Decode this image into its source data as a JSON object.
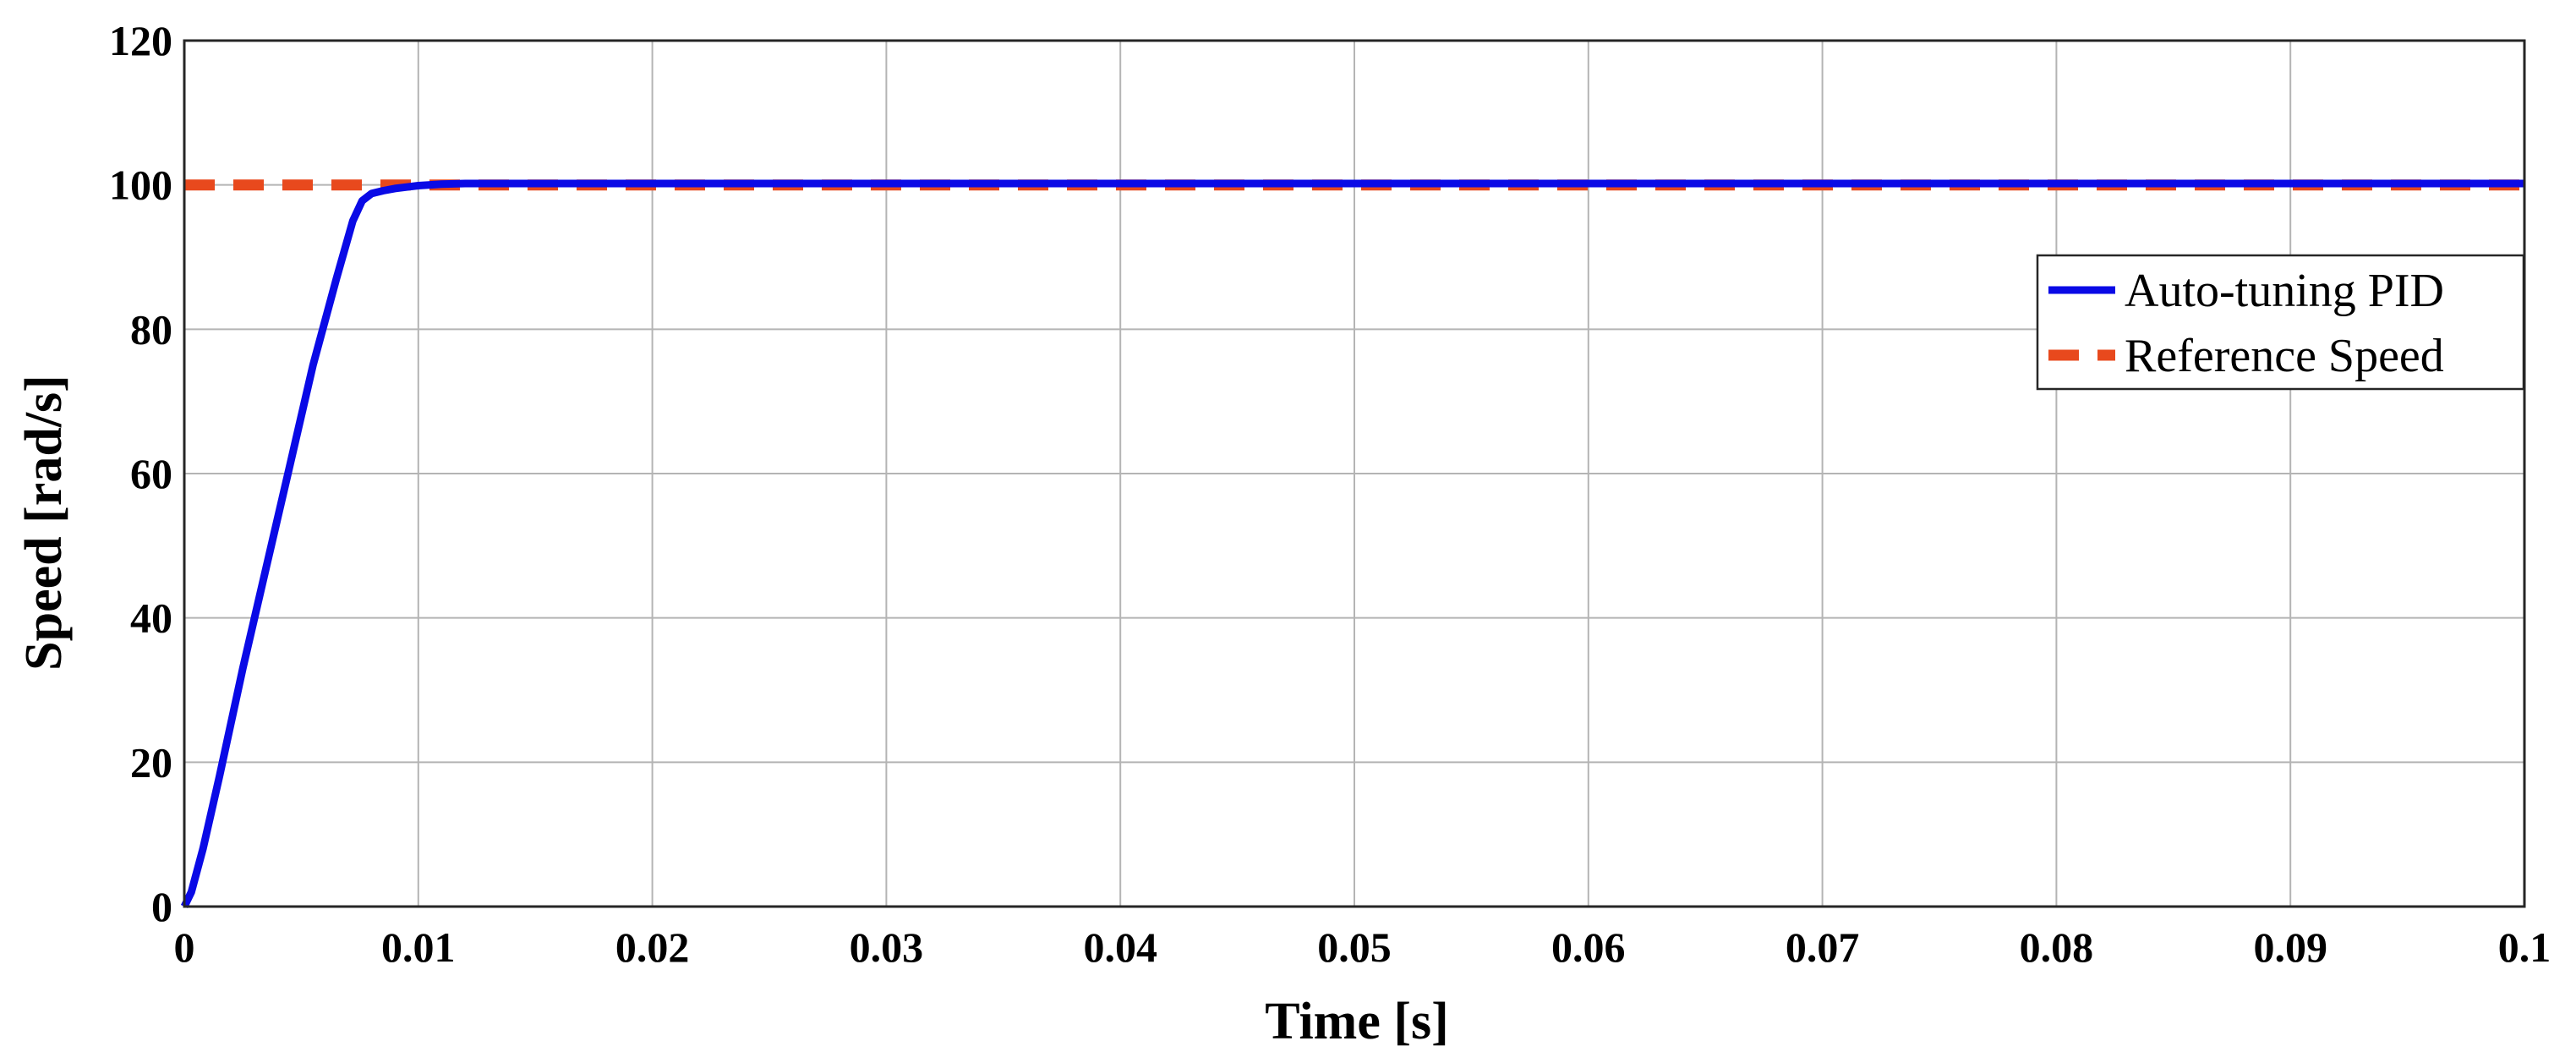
{
  "chart_data": {
    "type": "line",
    "title": "",
    "xlabel": "Time [s]",
    "ylabel": "Speed [rad/s]",
    "xlim": [
      0,
      0.1
    ],
    "ylim": [
      0,
      120
    ],
    "xticks": [
      0,
      0.01,
      0.02,
      0.03,
      0.04,
      0.05,
      0.06,
      0.07,
      0.08,
      0.09,
      0.1
    ],
    "xtick_labels": [
      "0",
      "0.01",
      "0.02",
      "0.03",
      "0.04",
      "0.05",
      "0.06",
      "0.07",
      "0.08",
      "0.09",
      "0.1"
    ],
    "yticks": [
      0,
      20,
      40,
      60,
      80,
      100,
      120
    ],
    "ytick_labels": [
      "0",
      "20",
      "40",
      "60",
      "80",
      "100",
      "120"
    ],
    "grid": true,
    "legend_position": "right",
    "series": [
      {
        "name": "Auto-tuning PID",
        "style": "solid",
        "color": "#0a0ae6",
        "x": [
          0,
          0.0003,
          0.0008,
          0.0015,
          0.0025,
          0.0035,
          0.0045,
          0.0055,
          0.0065,
          0.0072,
          0.0076,
          0.008,
          0.0085,
          0.009,
          0.0095,
          0.01,
          0.011,
          0.012,
          0.015,
          0.02,
          0.03,
          0.05,
          0.07,
          0.1
        ],
        "y": [
          0,
          2,
          8,
          18,
          33,
          47,
          61,
          75,
          87,
          95,
          97.8,
          98.8,
          99.2,
          99.5,
          99.7,
          99.9,
          100.1,
          100.2,
          100.2,
          100.2,
          100.2,
          100.2,
          100.2,
          100.2
        ]
      },
      {
        "name": "Reference Speed",
        "style": "dashed",
        "color": "#e8491d",
        "x": [
          0,
          0.1
        ],
        "y": [
          100,
          100
        ]
      }
    ]
  }
}
